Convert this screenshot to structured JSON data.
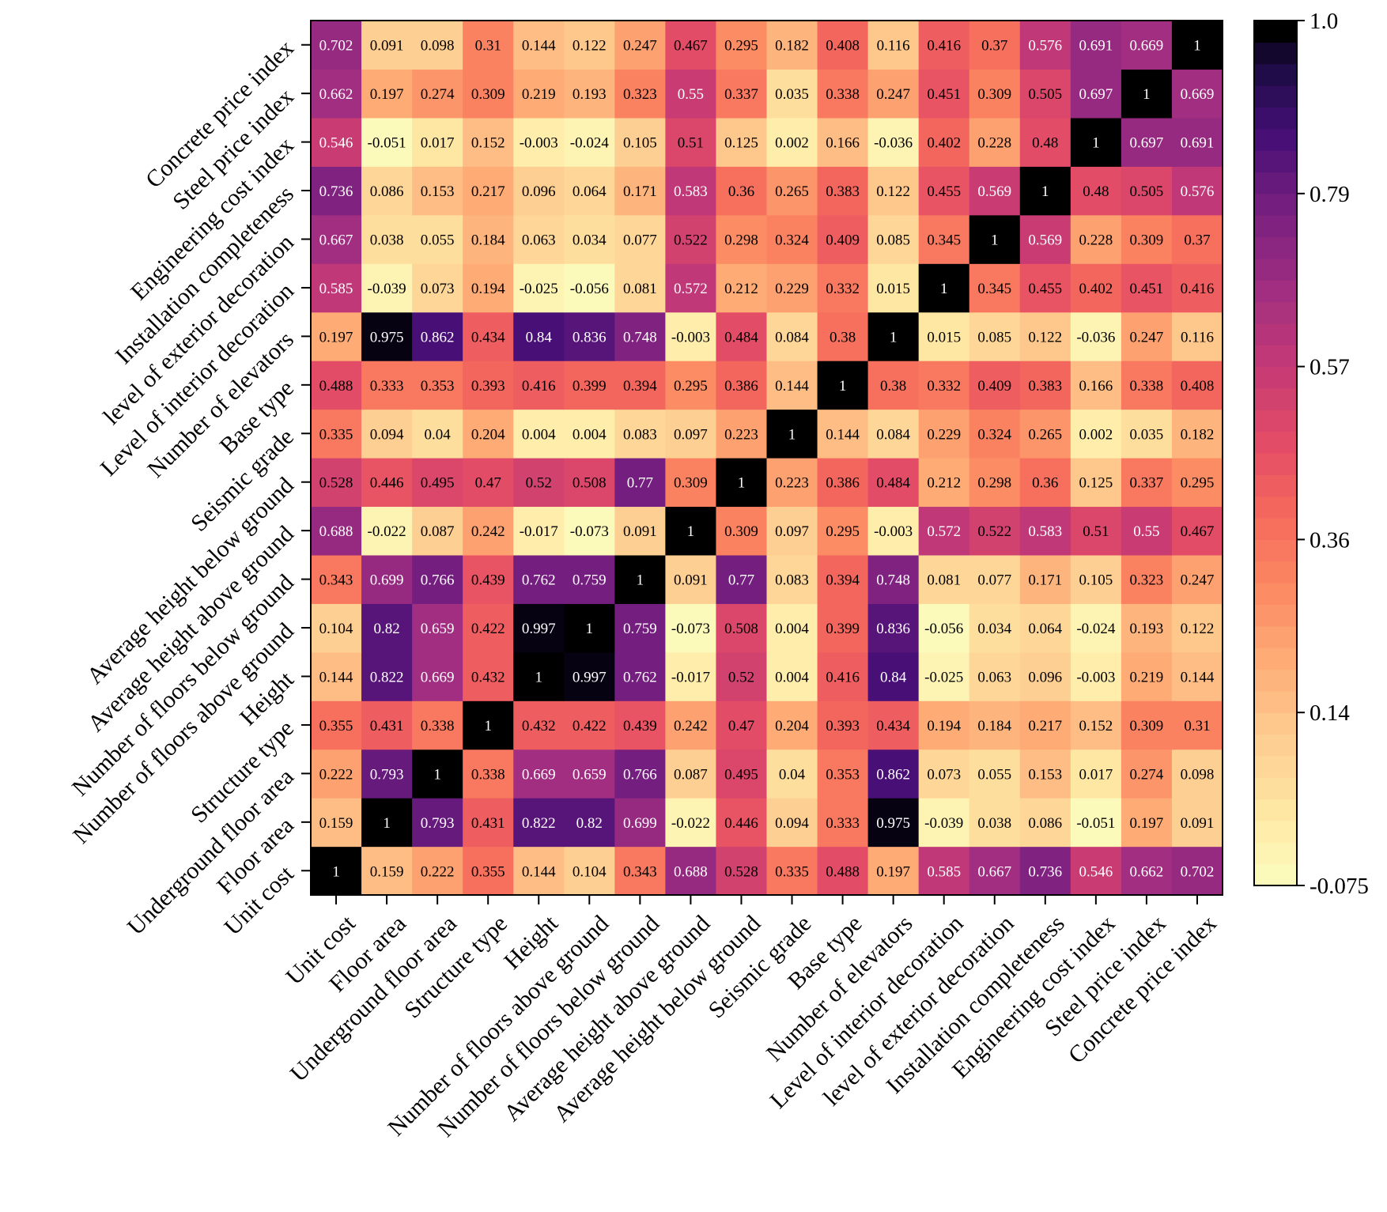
{
  "chart_data": {
    "type": "heatmap",
    "title": "",
    "labels": [
      "Unit cost",
      "Floor area",
      "Underground floor area",
      "Structure type",
      "Height",
      "Number of floors above ground",
      "Number of floors below ground",
      "Average height above ground",
      "Average height below ground",
      "Seismic grade",
      "Base type",
      "Number of elevators",
      "Level of interior decoration",
      "level of exterior decoration",
      "Installation completeness",
      "Engineering cost index",
      "Steel price index",
      "Concrete price index"
    ],
    "matrix": [
      [
        1,
        0.159,
        0.222,
        0.355,
        0.144,
        0.104,
        0.343,
        0.688,
        0.528,
        0.335,
        0.488,
        0.197,
        0.585,
        0.667,
        0.736,
        0.546,
        0.662,
        0.702
      ],
      [
        0.159,
        1,
        0.793,
        0.431,
        0.822,
        0.82,
        0.699,
        -0.022,
        0.446,
        0.094,
        0.333,
        0.975,
        -0.039,
        0.038,
        0.086,
        -0.051,
        0.197,
        0.091
      ],
      [
        0.222,
        0.793,
        1,
        0.338,
        0.669,
        0.659,
        0.766,
        0.087,
        0.495,
        0.04,
        0.353,
        0.862,
        0.073,
        0.055,
        0.153,
        0.017,
        0.274,
        0.098
      ],
      [
        0.355,
        0.431,
        0.338,
        1,
        0.432,
        0.422,
        0.439,
        0.242,
        0.47,
        0.204,
        0.393,
        0.434,
        0.194,
        0.184,
        0.217,
        0.152,
        0.309,
        0.31
      ],
      [
        0.144,
        0.822,
        0.669,
        0.432,
        1,
        0.997,
        0.762,
        -0.017,
        0.52,
        0.004,
        0.416,
        0.84,
        -0.025,
        0.063,
        0.096,
        -0.003,
        0.219,
        0.144
      ],
      [
        0.104,
        0.82,
        0.659,
        0.422,
        0.997,
        1,
        0.759,
        -0.073,
        0.508,
        0.004,
        0.399,
        0.836,
        -0.056,
        0.034,
        0.064,
        -0.024,
        0.193,
        0.122
      ],
      [
        0.343,
        0.699,
        0.766,
        0.439,
        0.762,
        0.759,
        1,
        0.091,
        0.77,
        0.083,
        0.394,
        0.748,
        0.081,
        0.077,
        0.171,
        0.105,
        0.323,
        0.247
      ],
      [
        0.688,
        -0.022,
        0.087,
        0.242,
        -0.017,
        -0.073,
        0.091,
        1,
        0.309,
        0.097,
        0.295,
        -0.003,
        0.572,
        0.522,
        0.583,
        0.51,
        0.55,
        0.467
      ],
      [
        0.528,
        0.446,
        0.495,
        0.47,
        0.52,
        0.508,
        0.77,
        0.309,
        1,
        0.223,
        0.386,
        0.484,
        0.212,
        0.298,
        0.36,
        0.125,
        0.337,
        0.295
      ],
      [
        0.335,
        0.094,
        0.04,
        0.204,
        0.004,
        0.004,
        0.083,
        0.097,
        0.223,
        1,
        0.144,
        0.084,
        0.229,
        0.324,
        0.265,
        0.002,
        0.035,
        0.182
      ],
      [
        0.488,
        0.333,
        0.353,
        0.393,
        0.416,
        0.399,
        0.394,
        0.295,
        0.386,
        0.144,
        1,
        0.38,
        0.332,
        0.409,
        0.383,
        0.166,
        0.338,
        0.408
      ],
      [
        0.197,
        0.975,
        0.862,
        0.434,
        0.84,
        0.836,
        0.748,
        -0.003,
        0.484,
        0.084,
        0.38,
        1,
        0.015,
        0.085,
        0.122,
        -0.036,
        0.247,
        0.116
      ],
      [
        0.585,
        -0.039,
        0.073,
        0.194,
        -0.025,
        -0.056,
        0.081,
        0.572,
        0.212,
        0.229,
        0.332,
        0.015,
        1,
        0.345,
        0.455,
        0.402,
        0.451,
        0.416
      ],
      [
        0.667,
        0.038,
        0.055,
        0.184,
        0.063,
        0.034,
        0.077,
        0.522,
        0.298,
        0.324,
        0.409,
        0.085,
        0.345,
        1,
        0.569,
        0.228,
        0.309,
        0.37
      ],
      [
        0.736,
        0.086,
        0.153,
        0.217,
        0.096,
        0.064,
        0.171,
        0.583,
        0.36,
        0.265,
        0.383,
        0.122,
        0.455,
        0.569,
        1,
        0.48,
        0.505,
        0.576
      ],
      [
        0.546,
        -0.051,
        0.017,
        0.152,
        -0.003,
        -0.024,
        0.105,
        0.51,
        0.125,
        0.002,
        0.166,
        -0.036,
        0.402,
        0.228,
        0.48,
        1,
        0.697,
        0.691
      ],
      [
        0.662,
        0.197,
        0.274,
        0.309,
        0.219,
        0.193,
        0.323,
        0.55,
        0.337,
        0.035,
        0.338,
        0.247,
        0.451,
        0.309,
        0.505,
        0.697,
        1,
        0.669
      ],
      [
        0.702,
        0.091,
        0.098,
        0.31,
        0.144,
        0.122,
        0.247,
        0.467,
        0.295,
        0.182,
        0.408,
        0.116,
        0.416,
        0.37,
        0.576,
        0.691,
        0.669,
        1
      ]
    ],
    "colorbar": {
      "min": -0.075,
      "max": 1.0,
      "ticks": [
        "1.0",
        "0.79",
        "0.57",
        "0.36",
        "0.14",
        "-0.075"
      ],
      "colormap": "magma_r",
      "levels": 40
    },
    "row_order": "bottom-to-top"
  }
}
